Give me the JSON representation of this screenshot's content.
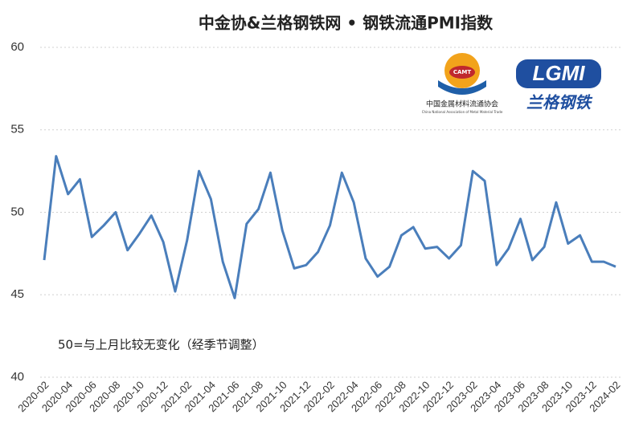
{
  "chart_data": {
    "type": "line",
    "title": "中金协&兰格钢铁网 • 钢铁流通PMI指数",
    "annotation": "50=与上月比较无变化（经季节调整）",
    "categories": [
      "2020-02",
      null,
      "2020-04",
      null,
      "2020-06",
      null,
      "2020-08",
      null,
      "2020-10",
      null,
      "2020-12",
      null,
      "2021-02",
      null,
      "2021-04",
      null,
      "2021-06",
      null,
      "2021-08",
      null,
      "2021-10",
      null,
      "2021-12",
      null,
      "2022-02",
      null,
      "2022-04",
      null,
      "2022-06",
      null,
      "2022-08",
      null,
      "2022-10",
      null,
      "2022-12",
      null,
      "2023-02",
      null,
      "2023-04",
      null,
      "2023-06",
      null,
      "2023-08",
      null,
      "2023-10",
      null,
      "2023-12",
      null,
      "2024-02"
    ],
    "values": [
      47.1,
      53.4,
      51.1,
      52.0,
      48.5,
      49.2,
      50.0,
      47.7,
      48.7,
      49.8,
      48.2,
      45.2,
      48.3,
      52.5,
      50.8,
      47.0,
      44.8,
      49.3,
      50.2,
      52.4,
      48.9,
      46.6,
      46.8,
      47.6,
      49.2,
      52.4,
      50.6,
      47.2,
      46.1,
      46.7,
      48.6,
      49.1,
      47.8,
      47.9,
      47.2,
      48.0,
      52.5,
      51.9,
      46.8,
      47.8,
      49.6,
      47.1,
      47.9,
      50.6,
      48.1,
      48.6,
      47.0,
      47.0,
      46.7
    ],
    "color": "#4a7ebb",
    "ylim": [
      40,
      60
    ],
    "yticks": [
      40,
      45,
      50,
      55,
      60
    ],
    "grid": true
  },
  "logos": {
    "camt": "CAMT",
    "camt_name": "中国金属材料流通协会",
    "camt_english": "China National Association of Metal Material Trade",
    "lgmi": "LGMI",
    "lgmi_name": "兰格钢铁"
  }
}
